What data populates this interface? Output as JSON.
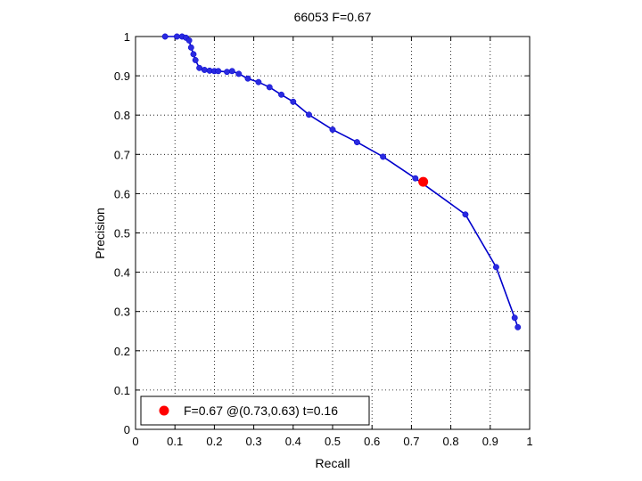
{
  "chart_data": {
    "type": "line",
    "title": "66053 F=0.67",
    "xlabel": "Recall",
    "ylabel": "Precision",
    "xlim": [
      0,
      1
    ],
    "ylim": [
      0,
      1
    ],
    "xticks": [
      "0",
      "0.1",
      "0.2",
      "0.3",
      "0.4",
      "0.5",
      "0.6",
      "0.7",
      "0.8",
      "0.9",
      "1"
    ],
    "yticks": [
      "0",
      "0.1",
      "0.2",
      "0.3",
      "0.4",
      "0.5",
      "0.6",
      "0.7",
      "0.8",
      "0.9",
      "1"
    ],
    "grid": true,
    "line_color": "#0000cc",
    "marker_color": "#2a2ae0",
    "highlight_color": "#ff0000",
    "series": [
      {
        "x": [
          0.075,
          0.105,
          0.118,
          0.128,
          0.136,
          0.141,
          0.147,
          0.152,
          0.162,
          0.175,
          0.188,
          0.2,
          0.21,
          0.232,
          0.245,
          0.262,
          0.285,
          0.312,
          0.34,
          0.37,
          0.4,
          0.44,
          0.5,
          0.562,
          0.628,
          0.71,
          0.837,
          0.915,
          0.962,
          0.97
        ],
        "y": [
          1.0,
          1.0,
          1.0,
          0.997,
          0.99,
          0.972,
          0.955,
          0.94,
          0.92,
          0.915,
          0.913,
          0.912,
          0.912,
          0.91,
          0.912,
          0.905,
          0.893,
          0.884,
          0.871,
          0.852,
          0.834,
          0.801,
          0.763,
          0.731,
          0.694,
          0.639,
          0.547,
          0.413,
          0.284,
          0.26
        ]
      }
    ],
    "highlight_point": {
      "x": 0.73,
      "y": 0.63
    },
    "legend": {
      "location": "bottom-left",
      "text": "F=0.67 @(0.73,0.63) t=0.16"
    }
  }
}
